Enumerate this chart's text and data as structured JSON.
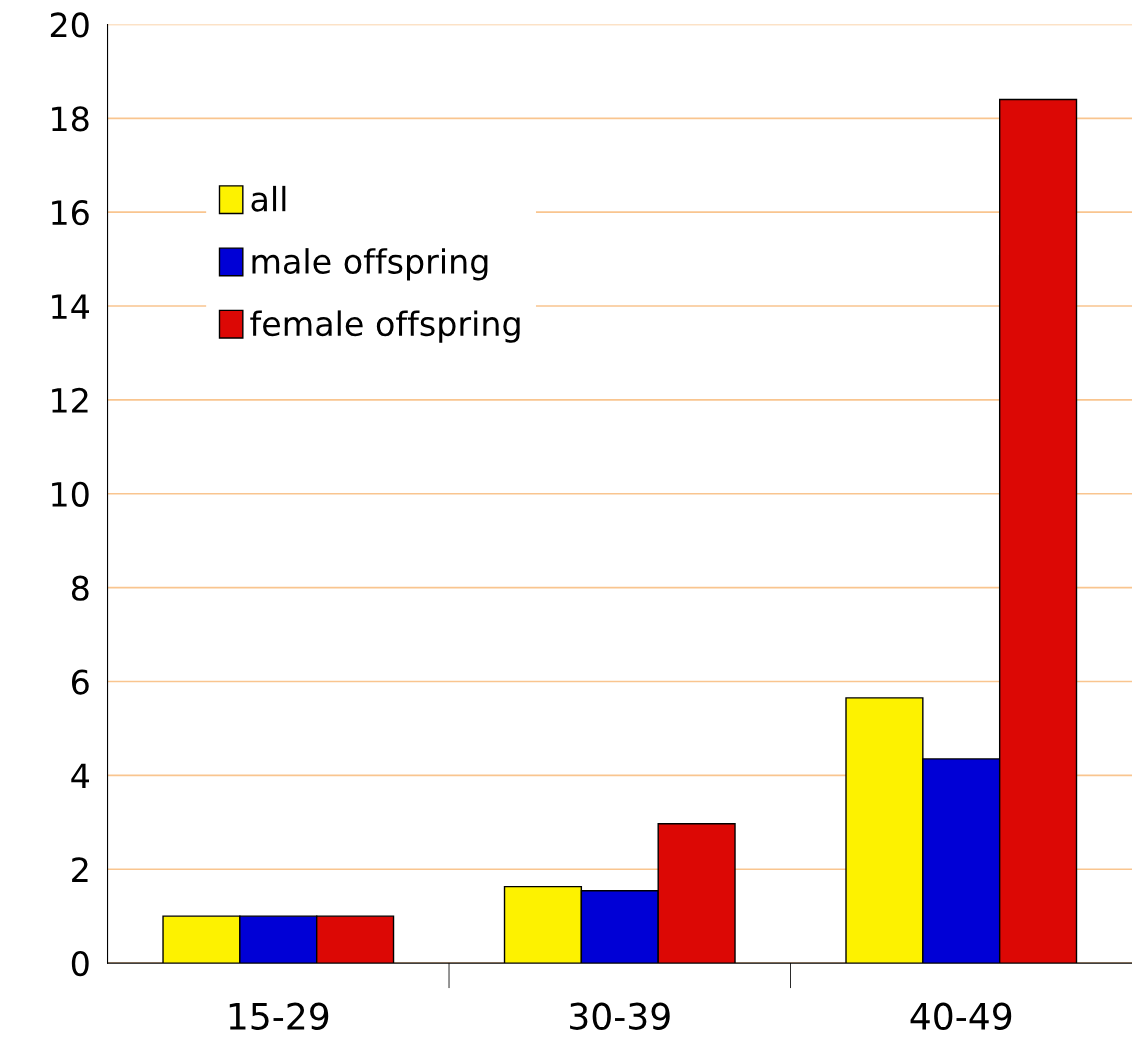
{
  "chart_data": {
    "type": "bar",
    "categories": [
      "15-29",
      "30-39",
      "40-49"
    ],
    "series": [
      {
        "name": "all",
        "color": "#fdf200",
        "values": [
          1.0,
          1.63,
          5.65
        ]
      },
      {
        "name": "male offspring",
        "color": "#0000d6",
        "values": [
          1.0,
          1.54,
          4.35
        ]
      },
      {
        "name": "female offspring",
        "color": "#dc0805",
        "values": [
          1.0,
          2.97,
          18.4
        ]
      }
    ],
    "ylim": [
      0,
      20
    ],
    "yticks": [
      0,
      2,
      4,
      6,
      8,
      10,
      12,
      14,
      16,
      18,
      20
    ],
    "grid": "y",
    "legend": "top left"
  }
}
